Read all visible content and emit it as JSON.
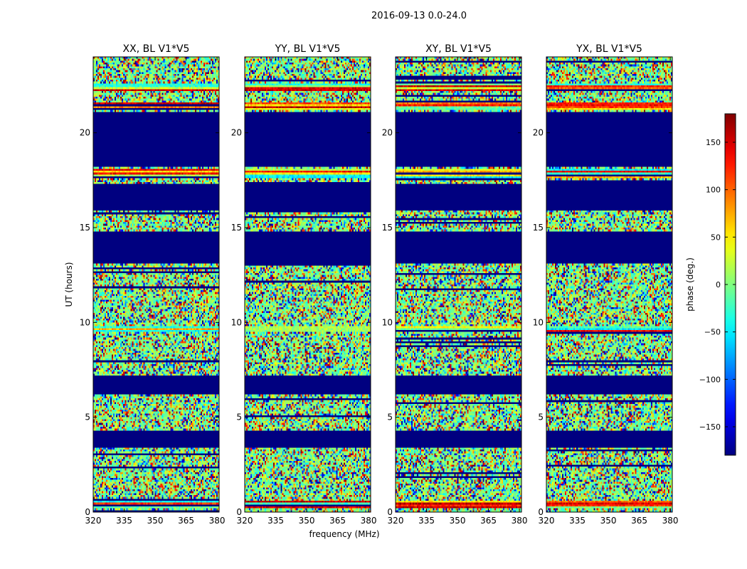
{
  "chart_data": {
    "type": "heatmap",
    "title": "2016-09-13 0.0-24.0",
    "xlabel": "frequency (MHz)",
    "ylabel": "UT (hours)",
    "xlim": [
      320,
      381
    ],
    "ylim": [
      0,
      24
    ],
    "xticks": [
      320,
      335,
      350,
      365,
      380
    ],
    "yticks": [
      0,
      5,
      10,
      15,
      20
    ],
    "panels": [
      {
        "title": "XX, BL V1*V5",
        "id": "xx"
      },
      {
        "title": "YY, BL V1*V5",
        "id": "yy"
      },
      {
        "title": "XY, BL V1*V5",
        "id": "xy"
      },
      {
        "title": "YX, BL V1*V5",
        "id": "yx"
      }
    ],
    "colorbar": {
      "label": "phase (deg.)",
      "range": [
        -180,
        180
      ],
      "ticks": [
        150,
        100,
        50,
        0,
        -50,
        -100,
        -150
      ],
      "tick_labels": [
        "150",
        "100",
        "50",
        "0",
        "−50",
        "−100",
        "−150"
      ],
      "colormap": "jet"
    },
    "flagged_bands_ut": [
      [
        3.4,
        4.3
      ],
      [
        6.2,
        7.2
      ],
      [
        13.1,
        14.8
      ],
      [
        15.9,
        17.3
      ],
      [
        18.2,
        21.1
      ]
    ],
    "coherent_bands_ut": [
      [
        22.2,
        22.6
      ],
      [
        21.2,
        21.6
      ],
      [
        17.6,
        18.1
      ],
      [
        0.2,
        0.6
      ],
      [
        9.5,
        9.8
      ]
    ]
  }
}
